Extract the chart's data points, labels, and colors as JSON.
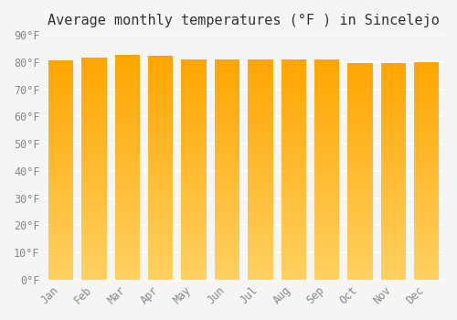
{
  "title": "Average monthly temperatures (°F ) in Sincelejo",
  "months": [
    "Jan",
    "Feb",
    "Mar",
    "Apr",
    "May",
    "Jun",
    "Jul",
    "Aug",
    "Sep",
    "Oct",
    "Nov",
    "Dec"
  ],
  "values": [
    80.6,
    81.7,
    82.6,
    82.4,
    81.1,
    80.8,
    81.1,
    80.8,
    80.8,
    79.7,
    79.7,
    80.1
  ],
  "bar_color_top": "#FFA500",
  "bar_color_bottom": "#FFD060",
  "ylim": [
    0,
    90
  ],
  "yticks": [
    0,
    10,
    20,
    30,
    40,
    50,
    60,
    70,
    80,
    90
  ],
  "ytick_labels": [
    "0°F",
    "10°F",
    "20°F",
    "30°F",
    "40°F",
    "50°F",
    "60°F",
    "70°F",
    "80°F",
    "90°F"
  ],
  "background_color": "#f5f5f5",
  "grid_color": "#ffffff",
  "bar_edge_color": "#FFA500",
  "title_fontsize": 11,
  "tick_fontsize": 8.5,
  "font_family": "monospace"
}
